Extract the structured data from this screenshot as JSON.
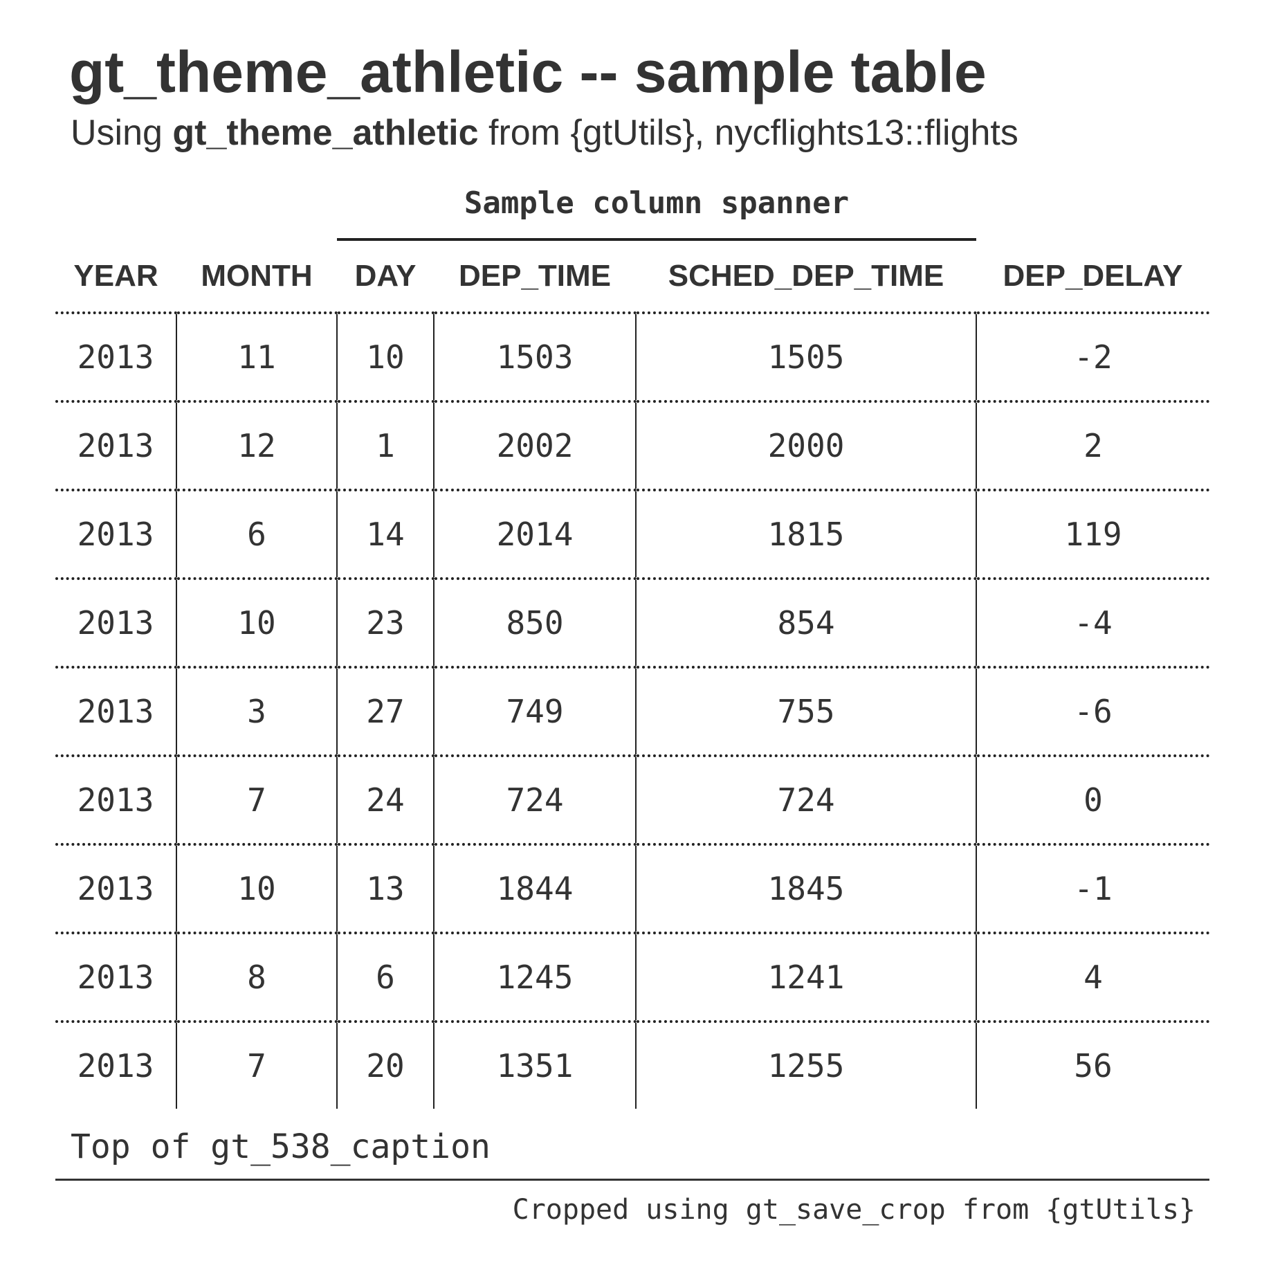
{
  "header": {
    "title": "gt_theme_athletic -- sample table",
    "subtitle_prefix": "Using ",
    "subtitle_bold": "gt_theme_athletic",
    "subtitle_suffix": " from {gtUtils}, nycflights13::flights"
  },
  "spanner": {
    "label": "Sample column spanner"
  },
  "table": {
    "columns": [
      "YEAR",
      "MONTH",
      "DAY",
      "DEP_TIME",
      "SCHED_DEP_TIME",
      "DEP_DELAY"
    ],
    "rows": [
      [
        "2013",
        "11",
        "10",
        "1503",
        "1505",
        "-2"
      ],
      [
        "2013",
        "12",
        "1",
        "2002",
        "2000",
        "2"
      ],
      [
        "2013",
        "6",
        "14",
        "2014",
        "1815",
        "119"
      ],
      [
        "2013",
        "10",
        "23",
        "850",
        "854",
        "-4"
      ],
      [
        "2013",
        "3",
        "27",
        "749",
        "755",
        "-6"
      ],
      [
        "2013",
        "7",
        "24",
        "724",
        "724",
        "0"
      ],
      [
        "2013",
        "10",
        "13",
        "1844",
        "1845",
        "-1"
      ],
      [
        "2013",
        "8",
        "6",
        "1245",
        "1241",
        "4"
      ],
      [
        "2013",
        "7",
        "20",
        "1351",
        "1255",
        "56"
      ]
    ]
  },
  "caption": "Top of gt_538_caption",
  "source_note": "Cropped using gt_save_crop from {gtUtils}"
}
